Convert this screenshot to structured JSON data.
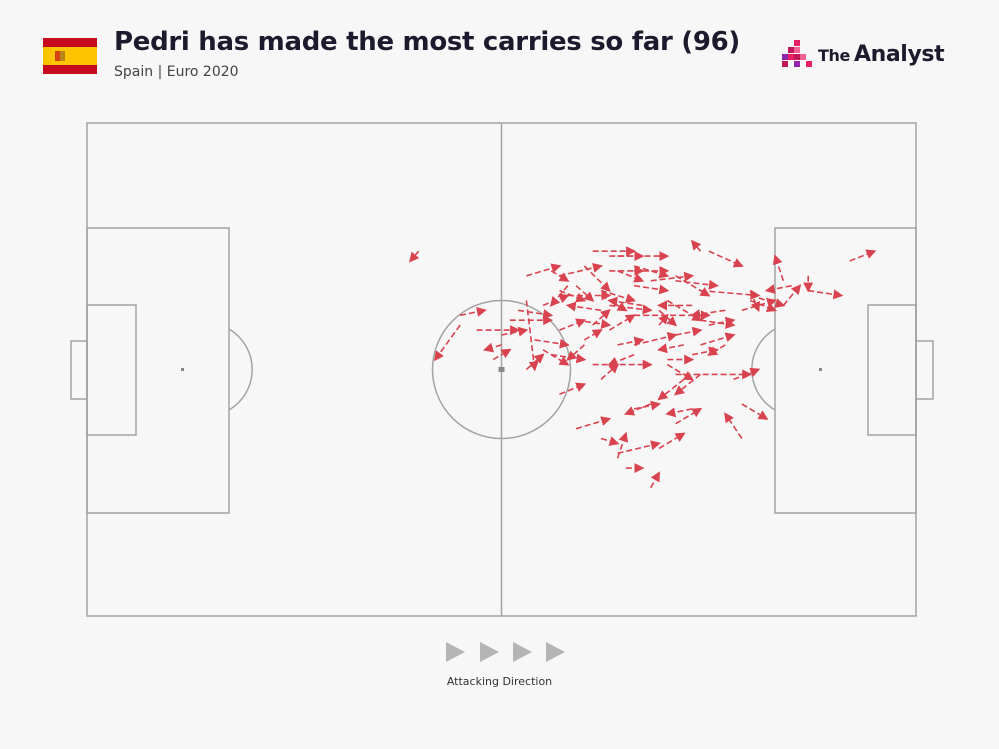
{
  "header": {
    "title": "Pedri has made the most carries so far (96)",
    "subtitle": "Spain | Euro 2020",
    "flag_icon": "spain-flag-icon",
    "flag_colors": {
      "red": "#c60b1e",
      "yellow": "#ffc400"
    }
  },
  "brand": {
    "prefix": "The",
    "name": "Analyst",
    "logo_icon": "the-analyst-logo-icon",
    "logo_colors": [
      "#c2185b",
      "#e91e63",
      "#f06292",
      "#8e24aa"
    ]
  },
  "footer": {
    "attacking_direction_label": "Attacking Direction",
    "arrow_icon": "play-triangle-icon",
    "arrow_count": 4
  },
  "colors": {
    "carry": "#d9434f",
    "pitch_lines": "#a3a3a3",
    "background": "#f7f7f7"
  },
  "chart_data": {
    "type": "pitch-carry-map",
    "units": "pitch coordinates 0-100 (x = length toward attacking goal, y = width)",
    "attacking_direction": "left-to-right",
    "carries": [
      [
        40,
        26,
        39,
        28
      ],
      [
        58,
        33,
        56,
        37
      ],
      [
        50,
        45,
        48,
        46
      ],
      [
        53,
        36,
        54,
        50
      ],
      [
        45,
        41,
        42,
        48
      ],
      [
        55,
        46,
        58,
        49
      ],
      [
        61,
        49,
        68,
        49
      ],
      [
        71,
        51,
        80,
        51
      ],
      [
        74,
        51,
        71,
        55
      ],
      [
        74,
        26,
        73,
        24
      ],
      [
        75,
        26,
        79,
        29
      ],
      [
        84,
        32,
        83,
        27
      ],
      [
        87,
        31,
        87,
        34
      ],
      [
        92,
        28,
        95,
        26
      ],
      [
        87,
        34,
        91,
        35
      ],
      [
        80,
        34,
        81,
        38
      ],
      [
        80,
        35,
        84,
        37
      ],
      [
        71,
        32,
        76,
        33
      ],
      [
        74,
        34,
        81,
        35
      ],
      [
        71,
        31,
        75,
        35
      ],
      [
        70,
        36,
        74,
        40
      ],
      [
        74,
        40,
        78,
        41
      ],
      [
        69,
        38,
        71,
        41
      ],
      [
        66,
        39,
        75,
        39
      ],
      [
        62,
        35,
        65,
        38
      ],
      [
        66,
        33,
        70,
        34
      ],
      [
        68,
        32,
        73,
        31
      ],
      [
        64,
        30,
        67,
        32
      ],
      [
        66,
        29,
        70,
        31
      ],
      [
        60,
        29,
        63,
        34
      ],
      [
        56,
        30,
        58,
        32
      ],
      [
        59,
        33,
        61,
        36
      ],
      [
        62,
        34,
        66,
        36
      ],
      [
        63,
        37,
        68,
        38
      ],
      [
        59,
        40,
        63,
        41
      ],
      [
        60,
        44,
        62,
        42
      ],
      [
        64,
        45,
        67,
        44
      ],
      [
        69,
        41,
        70,
        39
      ],
      [
        71,
        43,
        74,
        42
      ],
      [
        75,
        41,
        78,
        40
      ],
      [
        80,
        36,
        83,
        38
      ],
      [
        85,
        33,
        82,
        34
      ],
      [
        79,
        38,
        83,
        36
      ],
      [
        84,
        37,
        86,
        33
      ],
      [
        66,
        45,
        71,
        43
      ],
      [
        63,
        42,
        66,
        39
      ],
      [
        61,
        41,
        63,
        38
      ],
      [
        57,
        42,
        60,
        40
      ],
      [
        55,
        37,
        58,
        35
      ],
      [
        57,
        34,
        60,
        36
      ],
      [
        62,
        38,
        58,
        37
      ],
      [
        67,
        37,
        63,
        36
      ],
      [
        73,
        37,
        69,
        37
      ],
      [
        77,
        38,
        73,
        39
      ],
      [
        72,
        45,
        69,
        46
      ],
      [
        74,
        45,
        78,
        43
      ],
      [
        73,
        47,
        76,
        46
      ],
      [
        70,
        48,
        73,
        48
      ],
      [
        62,
        52,
        64,
        49
      ],
      [
        57,
        55,
        60,
        53
      ],
      [
        53,
        50,
        55,
        47
      ],
      [
        49,
        48,
        51,
        46
      ],
      [
        45,
        39,
        48,
        38
      ],
      [
        47,
        42,
        52,
        42
      ],
      [
        53,
        31,
        57,
        29
      ],
      [
        57,
        31,
        62,
        29
      ],
      [
        63,
        30,
        67,
        30
      ],
      [
        61,
        26,
        66,
        26
      ],
      [
        63,
        27,
        67,
        27
      ],
      [
        64,
        27,
        70,
        27
      ],
      [
        66,
        30,
        70,
        30
      ],
      [
        58,
        35,
        63,
        35
      ],
      [
        52,
        38,
        56,
        39
      ],
      [
        50,
        43,
        53,
        42
      ],
      [
        51,
        40,
        56,
        40
      ],
      [
        54,
        44,
        58,
        45
      ],
      [
        60,
        45,
        58,
        48
      ],
      [
        56,
        47,
        60,
        48
      ],
      [
        66,
        47,
        63,
        49
      ],
      [
        70,
        49,
        73,
        52
      ],
      [
        78,
        52,
        81,
        50
      ],
      [
        72,
        52,
        69,
        56
      ],
      [
        73,
        58,
        70,
        59
      ],
      [
        59,
        62,
        63,
        60
      ],
      [
        62,
        64,
        64,
        65
      ],
      [
        64,
        67,
        69,
        65
      ],
      [
        65,
        70,
        67,
        70
      ],
      [
        79,
        64,
        77,
        59
      ],
      [
        79,
        57,
        82,
        60
      ],
      [
        77,
        45,
        75,
        47
      ],
      [
        64,
        68,
        65,
        63
      ],
      [
        69,
        66,
        72,
        63
      ],
      [
        71,
        61,
        74,
        58
      ],
      [
        66,
        58,
        69,
        57
      ],
      [
        68,
        57,
        65,
        59
      ],
      [
        68,
        74,
        69,
        71
      ]
    ]
  }
}
